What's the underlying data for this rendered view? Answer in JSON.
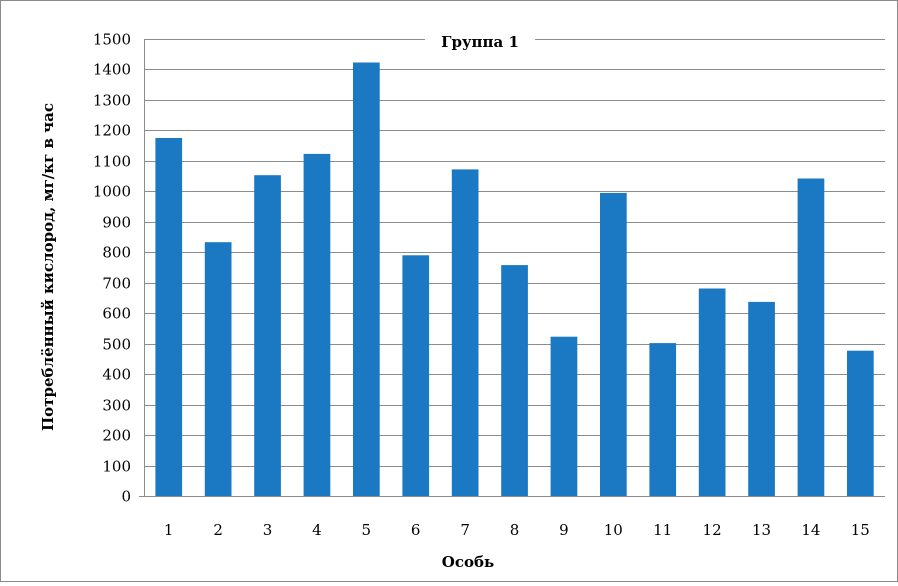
{
  "chart_data": {
    "type": "bar",
    "title": "Группа 1",
    "xlabel": "Особь",
    "ylabel": "Потреблённый кислород, мг/кг в час",
    "categories": [
      "1",
      "2",
      "3",
      "4",
      "5",
      "6",
      "7",
      "8",
      "9",
      "10",
      "11",
      "12",
      "13",
      "14",
      "15"
    ],
    "series": [
      {
        "values": [
          1175,
          833,
          1053,
          1123,
          1423,
          790,
          1072,
          758,
          523,
          995,
          502,
          681,
          637,
          1042,
          477
        ]
      }
    ],
    "ylim": [
      0,
      1500
    ],
    "yticks": [
      "0",
      "100",
      "200",
      "300",
      "400",
      "500",
      "600",
      "700",
      "800",
      "900",
      "1000",
      "1100",
      "1200",
      "1300",
      "1400",
      "1500"
    ],
    "grid": true,
    "legend": "none",
    "bar_color": "#1b78c2",
    "grid_color": "#8c8c8c"
  }
}
